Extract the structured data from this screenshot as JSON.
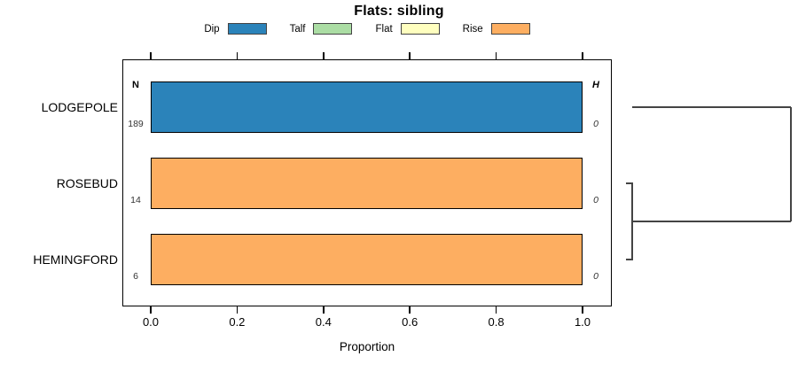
{
  "title": "Flats: sibling",
  "legend": {
    "items": [
      {
        "label": "Dip",
        "color": "#2b83ba"
      },
      {
        "label": "Talf",
        "color": "#abdda4"
      },
      {
        "label": "Flat",
        "color": "#ffffbf"
      },
      {
        "label": "Rise",
        "color": "#fdae61"
      }
    ]
  },
  "chart_data": {
    "type": "bar",
    "orientation": "horizontal",
    "title": "Flats: sibling",
    "xlabel": "Proportion",
    "xlim": [
      0,
      1.0
    ],
    "x_ticks": [
      "0.0",
      "0.2",
      "0.4",
      "0.6",
      "0.8",
      "1.0"
    ],
    "x_tick_values": [
      0,
      0.2,
      0.4,
      0.6,
      0.8,
      1.0
    ],
    "grid": false,
    "legend_position": "top-center",
    "categories": [
      "LODGEPOLE",
      "ROSEBUD",
      "HEMINGFORD"
    ],
    "columns": {
      "n_header": "N",
      "h_header": "H"
    },
    "rows": [
      {
        "category": "LODGEPOLE",
        "n": "189",
        "h": "0",
        "segments": [
          {
            "name": "Dip",
            "value": 1.0
          }
        ]
      },
      {
        "category": "ROSEBUD",
        "n": "14",
        "h": "0",
        "segments": [
          {
            "name": "Rise",
            "value": 1.0
          }
        ]
      },
      {
        "category": "HEMINGFORD",
        "n": "6",
        "h": "0",
        "segments": [
          {
            "name": "Rise",
            "value": 1.0
          }
        ]
      }
    ],
    "dendrogram": {
      "merges": [
        {
          "clusters": [
            "ROSEBUD",
            "HEMINGFORD"
          ],
          "height": 0
        },
        {
          "clusters": [
            "LODGEPOLE",
            "ROSEBUD+HEMINGFORD"
          ],
          "height": 1
        }
      ]
    }
  }
}
